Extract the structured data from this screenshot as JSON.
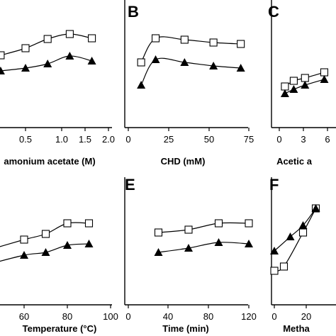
{
  "chart_data": [
    {
      "panel": "",
      "type": "line",
      "xlabel": "amonium acetate (M)",
      "xticks": [
        "0.5",
        "1.0",
        "1.5",
        "2.0"
      ],
      "xlim": [
        0.05,
        2.0
      ],
      "ylim": [
        0,
        100
      ],
      "series": [
        {
          "marker": "square",
          "x": [
            0.05,
            0.5,
            0.9,
            1.3,
            1.7
          ],
          "y": [
            62,
            72,
            85,
            92,
            86
          ]
        },
        {
          "marker": "triangle",
          "x": [
            0.05,
            0.5,
            0.9,
            1.3,
            1.7
          ],
          "y": [
            40,
            44,
            50,
            61,
            54
          ]
        }
      ]
    },
    {
      "panel": "B",
      "type": "line",
      "xlabel": "CHD (mM)",
      "xticks": [
        "0",
        "25",
        "50",
        "75"
      ],
      "xlim": [
        0,
        75
      ],
      "ylim": [
        0,
        100
      ],
      "series": [
        {
          "marker": "square",
          "x": [
            8,
            17,
            35,
            53,
            70
          ],
          "y": [
            52,
            86,
            84,
            80,
            78
          ]
        },
        {
          "marker": "triangle",
          "x": [
            8,
            17,
            35,
            53,
            70
          ],
          "y": [
            20,
            56,
            52,
            47,
            44
          ]
        }
      ]
    },
    {
      "panel": "C",
      "type": "line",
      "xlabel": "Acetic a",
      "xticks": [
        "0",
        "3",
        "6"
      ],
      "xlim": [
        0,
        8
      ],
      "ylim": [
        0,
        100
      ],
      "series": [
        {
          "marker": "square",
          "x": [
            0.7,
            1.8,
            3.2,
            5.6
          ],
          "y": [
            18,
            26,
            30,
            38
          ]
        },
        {
          "marker": "triangle",
          "x": [
            0.7,
            1.8,
            3.2,
            5.6
          ],
          "y": [
            8,
            14,
            20,
            28
          ]
        }
      ]
    },
    {
      "panel": "",
      "type": "line",
      "xlabel": "Temperature (°C)",
      "xticks": [
        "60",
        "80",
        "100"
      ],
      "xlim": [
        40,
        100
      ],
      "ylim": [
        0,
        100
      ],
      "series": [
        {
          "marker": "square",
          "x": [
            42,
            60,
            70,
            80,
            90
          ],
          "y": [
            36,
            52,
            60,
            75,
            75
          ]
        },
        {
          "marker": "triangle",
          "x": [
            42,
            60,
            70,
            80,
            90
          ],
          "y": [
            16,
            30,
            34,
            44,
            46
          ]
        }
      ]
    },
    {
      "panel": "E",
      "type": "line",
      "xlabel": "Time (min)",
      "xticks": [
        "0",
        "40",
        "80",
        "120"
      ],
      "xlim": [
        0,
        120
      ],
      "ylim": [
        0,
        100
      ],
      "series": [
        {
          "marker": "square",
          "x": [
            30,
            60,
            90,
            120
          ],
          "y": [
            62,
            66,
            75,
            75
          ]
        },
        {
          "marker": "triangle",
          "x": [
            30,
            60,
            90,
            120
          ],
          "y": [
            34,
            40,
            48,
            46
          ]
        }
      ]
    },
    {
      "panel": "F",
      "type": "line",
      "xlabel": "Metha",
      "xticks": [
        "0",
        "20"
      ],
      "xlim": [
        0,
        40
      ],
      "ylim": [
        0,
        100
      ],
      "series": [
        {
          "marker": "square",
          "x": [
            0,
            6,
            18,
            26
          ],
          "y": [
            8,
            14,
            62,
            96
          ]
        },
        {
          "marker": "triangle",
          "x": [
            0,
            10,
            18,
            26
          ],
          "y": [
            36,
            56,
            72,
            96
          ]
        }
      ]
    }
  ]
}
